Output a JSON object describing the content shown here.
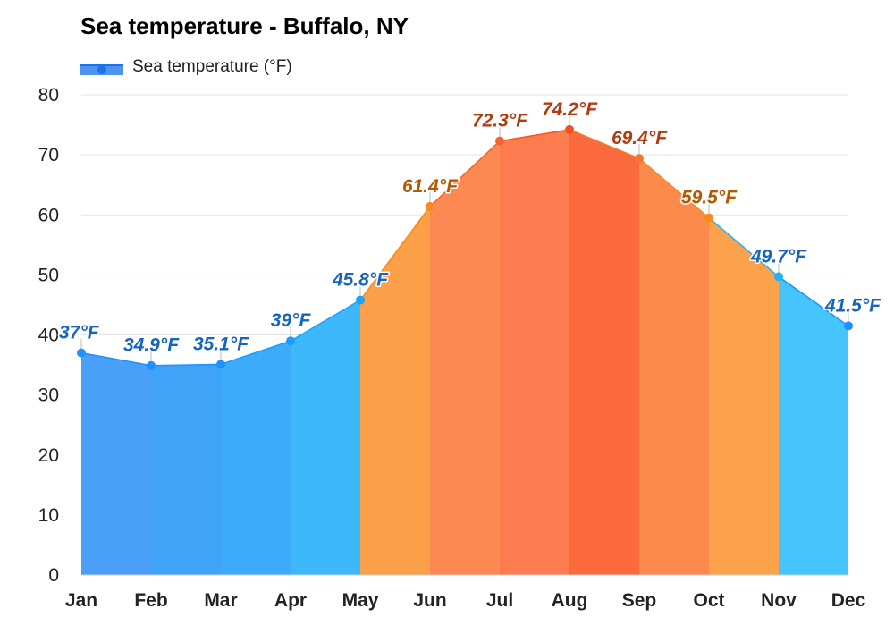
{
  "title": "Sea temperature - Buffalo, NY",
  "legend": {
    "label": "Sea temperature (°F)",
    "color": "#1d73ee"
  },
  "chart_data": {
    "type": "area",
    "title": "Sea temperature - Buffalo, NY",
    "xlabel": "",
    "ylabel": "",
    "categories": [
      "Jan",
      "Feb",
      "Mar",
      "Apr",
      "May",
      "Jun",
      "Jul",
      "Aug",
      "Sep",
      "Oct",
      "Nov",
      "Dec"
    ],
    "series": [
      {
        "name": "Sea temperature (°F)",
        "values": [
          37,
          34.9,
          35.1,
          39,
          45.8,
          61.4,
          72.3,
          74.2,
          69.4,
          59.5,
          49.7,
          41.5
        ],
        "labels": [
          "37°F",
          "34.9°F",
          "35.1°F",
          "39°F",
          "45.8°F",
          "61.4°F",
          "72.3°F",
          "74.2°F",
          "69.4°F",
          "59.5°F",
          "49.7°F",
          "41.5°F"
        ]
      }
    ],
    "ylim": [
      0,
      80
    ],
    "yticks": [
      "0",
      "10",
      "20",
      "30",
      "40",
      "50",
      "60",
      "70",
      "80"
    ],
    "grid": true,
    "legend_position": "top-left",
    "segment_colors": [
      "#4a9ff7",
      "#3fa3f8",
      "#3cabf9",
      "#3cb8fb",
      "#fba048",
      "#fc8952",
      "#fc7c50",
      "#fb6a3c",
      "#fc8a4d",
      "#fba24a",
      "#45c5fb",
      "#4aaaf9"
    ],
    "marker_colors": [
      "#1e90ff",
      "#1e90ff",
      "#1e90ff",
      "#1e9bff",
      "#1aa2ff",
      "#f58a1f",
      "#f2652c",
      "#f0531f",
      "#f07a2c",
      "#f58a1f",
      "#1eb2ff",
      "#1e90ff"
    ],
    "label_colors": [
      "#1565c0",
      "#1565c0",
      "#1565c0",
      "#1565c0",
      "#1565c0",
      "#b35a00",
      "#b23a10",
      "#b23a10",
      "#b23a10",
      "#b35a00",
      "#1565c0",
      "#1565c0"
    ]
  }
}
